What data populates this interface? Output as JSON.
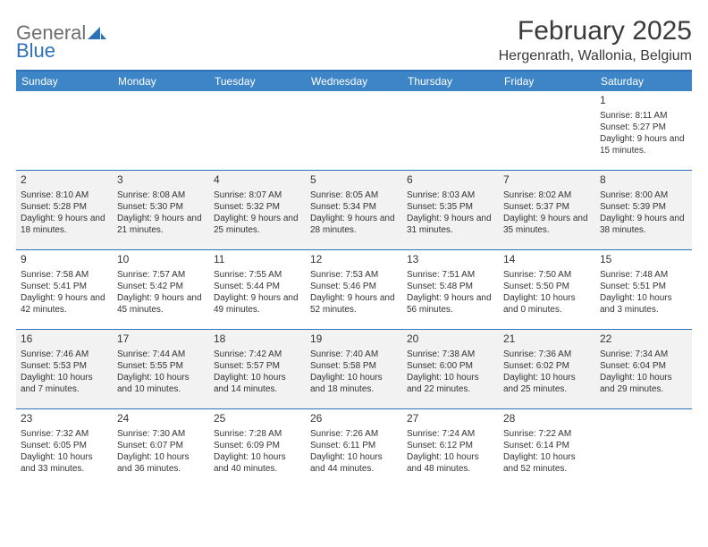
{
  "logo": {
    "part1": "General",
    "part2": "Blue"
  },
  "title": "February 2025",
  "location": "Hergenrath, Wallonia, Belgium",
  "colors": {
    "header_bar": "#3d85c6",
    "divider": "#2f71b8",
    "shaded_row": "#f2f2f2",
    "text": "#333333",
    "logo_gray": "#6d6e71",
    "logo_blue": "#2f71b8"
  },
  "dow": [
    "Sunday",
    "Monday",
    "Tuesday",
    "Wednesday",
    "Thursday",
    "Friday",
    "Saturday"
  ],
  "weeks": [
    {
      "shaded": false,
      "days": [
        null,
        null,
        null,
        null,
        null,
        null,
        {
          "n": "1",
          "sunrise": "8:11 AM",
          "sunset": "5:27 PM",
          "dlh": "9",
          "dlm": "15"
        }
      ]
    },
    {
      "shaded": true,
      "days": [
        {
          "n": "2",
          "sunrise": "8:10 AM",
          "sunset": "5:28 PM",
          "dlh": "9",
          "dlm": "18"
        },
        {
          "n": "3",
          "sunrise": "8:08 AM",
          "sunset": "5:30 PM",
          "dlh": "9",
          "dlm": "21"
        },
        {
          "n": "4",
          "sunrise": "8:07 AM",
          "sunset": "5:32 PM",
          "dlh": "9",
          "dlm": "25"
        },
        {
          "n": "5",
          "sunrise": "8:05 AM",
          "sunset": "5:34 PM",
          "dlh": "9",
          "dlm": "28"
        },
        {
          "n": "6",
          "sunrise": "8:03 AM",
          "sunset": "5:35 PM",
          "dlh": "9",
          "dlm": "31"
        },
        {
          "n": "7",
          "sunrise": "8:02 AM",
          "sunset": "5:37 PM",
          "dlh": "9",
          "dlm": "35"
        },
        {
          "n": "8",
          "sunrise": "8:00 AM",
          "sunset": "5:39 PM",
          "dlh": "9",
          "dlm": "38"
        }
      ]
    },
    {
      "shaded": false,
      "days": [
        {
          "n": "9",
          "sunrise": "7:58 AM",
          "sunset": "5:41 PM",
          "dlh": "9",
          "dlm": "42"
        },
        {
          "n": "10",
          "sunrise": "7:57 AM",
          "sunset": "5:42 PM",
          "dlh": "9",
          "dlm": "45"
        },
        {
          "n": "11",
          "sunrise": "7:55 AM",
          "sunset": "5:44 PM",
          "dlh": "9",
          "dlm": "49"
        },
        {
          "n": "12",
          "sunrise": "7:53 AM",
          "sunset": "5:46 PM",
          "dlh": "9",
          "dlm": "52"
        },
        {
          "n": "13",
          "sunrise": "7:51 AM",
          "sunset": "5:48 PM",
          "dlh": "9",
          "dlm": "56"
        },
        {
          "n": "14",
          "sunrise": "7:50 AM",
          "sunset": "5:50 PM",
          "dlh": "10",
          "dlm": "0"
        },
        {
          "n": "15",
          "sunrise": "7:48 AM",
          "sunset": "5:51 PM",
          "dlh": "10",
          "dlm": "3"
        }
      ]
    },
    {
      "shaded": true,
      "days": [
        {
          "n": "16",
          "sunrise": "7:46 AM",
          "sunset": "5:53 PM",
          "dlh": "10",
          "dlm": "7"
        },
        {
          "n": "17",
          "sunrise": "7:44 AM",
          "sunset": "5:55 PM",
          "dlh": "10",
          "dlm": "10"
        },
        {
          "n": "18",
          "sunrise": "7:42 AM",
          "sunset": "5:57 PM",
          "dlh": "10",
          "dlm": "14"
        },
        {
          "n": "19",
          "sunrise": "7:40 AM",
          "sunset": "5:58 PM",
          "dlh": "10",
          "dlm": "18"
        },
        {
          "n": "20",
          "sunrise": "7:38 AM",
          "sunset": "6:00 PM",
          "dlh": "10",
          "dlm": "22"
        },
        {
          "n": "21",
          "sunrise": "7:36 AM",
          "sunset": "6:02 PM",
          "dlh": "10",
          "dlm": "25"
        },
        {
          "n": "22",
          "sunrise": "7:34 AM",
          "sunset": "6:04 PM",
          "dlh": "10",
          "dlm": "29"
        }
      ]
    },
    {
      "shaded": false,
      "days": [
        {
          "n": "23",
          "sunrise": "7:32 AM",
          "sunset": "6:05 PM",
          "dlh": "10",
          "dlm": "33"
        },
        {
          "n": "24",
          "sunrise": "7:30 AM",
          "sunset": "6:07 PM",
          "dlh": "10",
          "dlm": "36"
        },
        {
          "n": "25",
          "sunrise": "7:28 AM",
          "sunset": "6:09 PM",
          "dlh": "10",
          "dlm": "40"
        },
        {
          "n": "26",
          "sunrise": "7:26 AM",
          "sunset": "6:11 PM",
          "dlh": "10",
          "dlm": "44"
        },
        {
          "n": "27",
          "sunrise": "7:24 AM",
          "sunset": "6:12 PM",
          "dlh": "10",
          "dlm": "48"
        },
        {
          "n": "28",
          "sunrise": "7:22 AM",
          "sunset": "6:14 PM",
          "dlh": "10",
          "dlm": "52"
        },
        null
      ]
    }
  ],
  "labels": {
    "sunrise": "Sunrise:",
    "sunset": "Sunset:",
    "daylight": "Daylight:",
    "hours_word": "hours",
    "and_word": "and",
    "minutes_word": "minutes."
  }
}
